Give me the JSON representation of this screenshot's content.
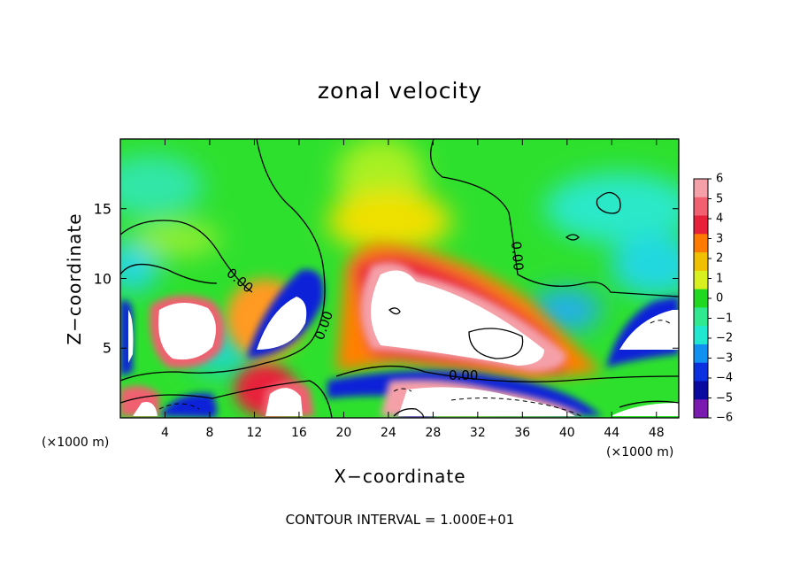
{
  "chart_data": {
    "type": "heatmap",
    "title": "zonal velocity",
    "xlabel": "X−coordinate",
    "ylabel": "Z−coordinate",
    "x_unit_note_left": "(×1000 m)",
    "x_unit_note_right": "(×1000 m)",
    "footnote": "CONTOUR INTERVAL = 1.000E+01",
    "xlim": [
      0,
      50
    ],
    "ylim": [
      0,
      20
    ],
    "x_ticks": [
      "4",
      "8",
      "12",
      "16",
      "20",
      "24",
      "28",
      "32",
      "36",
      "40",
      "44",
      "48"
    ],
    "y_ticks": [
      "5",
      "10",
      "15"
    ],
    "colorbar": {
      "range": [
        -6,
        6
      ],
      "ticks": [
        "6",
        "5",
        "4",
        "3",
        "2",
        "1",
        "0",
        "−1",
        "−2",
        "−3",
        "−4",
        "−5",
        "−6"
      ],
      "colors": [
        "#f5a0a8",
        "#f06070",
        "#e8203a",
        "#ff7a00",
        "#f0c000",
        "#d8f020",
        "#20d820",
        "#30e890",
        "#20e8d0",
        "#1090f0",
        "#0a30e0",
        "#0a0aa0",
        "#7a1ab0"
      ]
    },
    "contour_labels": [
      "0.00",
      "0.00",
      "0.00",
      "0.00"
    ],
    "grid": false
  }
}
